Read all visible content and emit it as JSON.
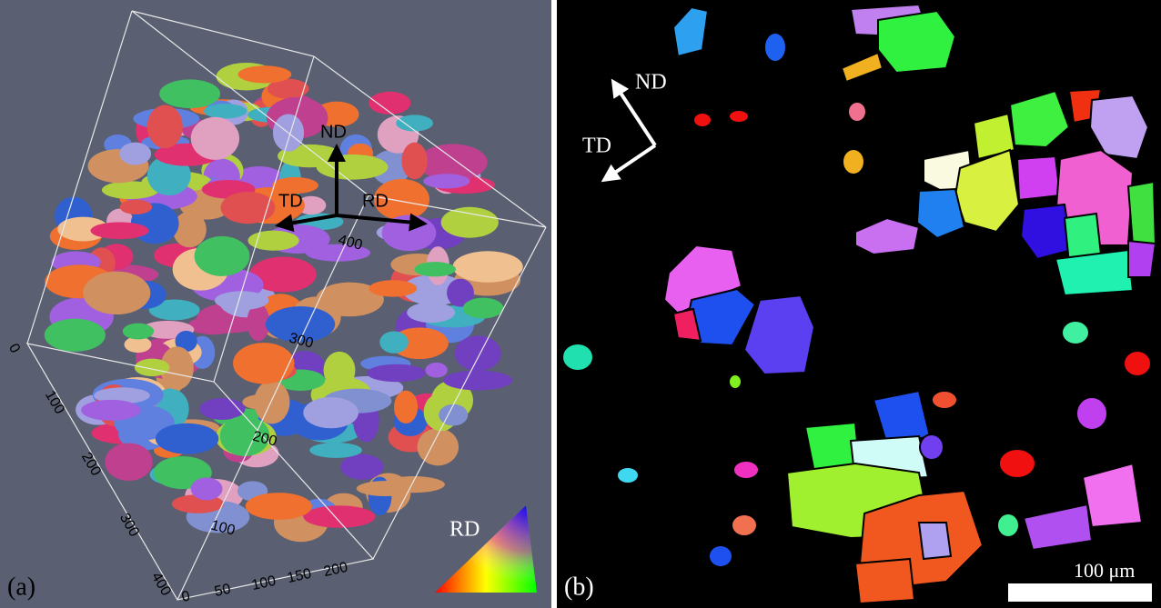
{
  "panels": [
    {
      "label": "(a)",
      "axes": {
        "nd": "ND",
        "td": "TD",
        "rd": "RD"
      },
      "box_ticks": {
        "vertical": [
          400,
          300,
          200,
          100
        ],
        "depth": [
          0,
          100,
          200,
          300,
          400
        ],
        "bottom": [
          0,
          50,
          100,
          150,
          200
        ]
      },
      "legend_label": "RD"
    },
    {
      "label": "(b)",
      "axes": {
        "nd": "ND",
        "td": "TD"
      },
      "scale_bar": "100 μm"
    }
  ]
}
